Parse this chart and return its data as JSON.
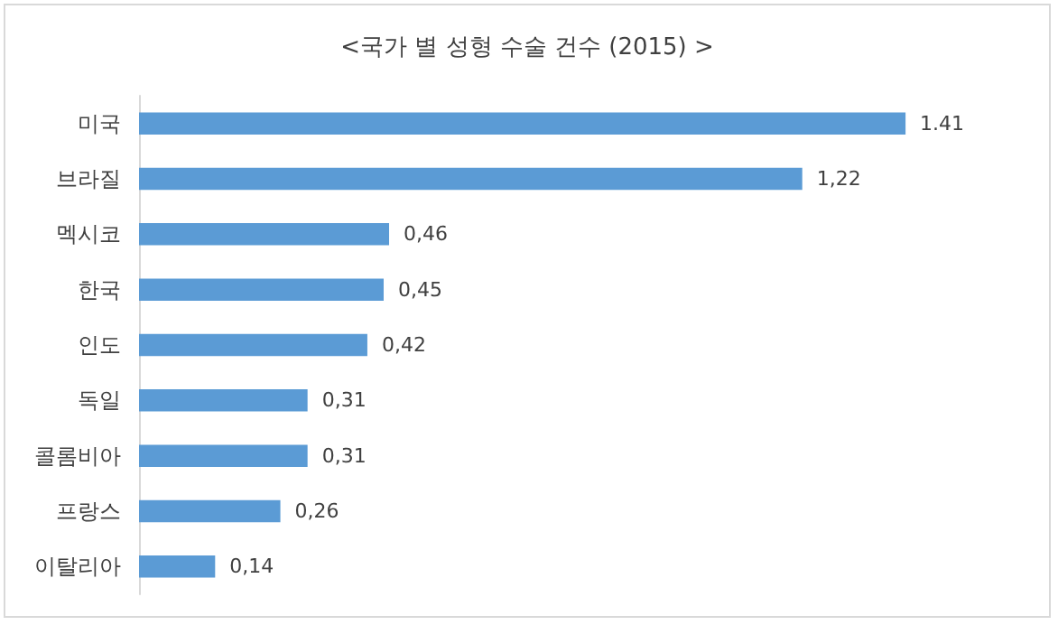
{
  "chart_data": {
    "type": "bar",
    "orientation": "horizontal",
    "title": "<국가 별 성형 수술 건수 (2015) >",
    "categories": [
      "미국",
      "브라질",
      "멕시코",
      "한국",
      "인도",
      "독일",
      "콜롬비아",
      "프랑스",
      "이탈리아"
    ],
    "values": [
      1.41,
      1.22,
      0.46,
      0.45,
      0.42,
      0.31,
      0.31,
      0.26,
      0.14
    ],
    "value_labels": [
      "1.41",
      "1,22",
      "0,46",
      "0,45",
      "0,42",
      "0,31",
      "0,31",
      "0,26",
      "0,14"
    ],
    "color": "#5b9bd5"
  }
}
